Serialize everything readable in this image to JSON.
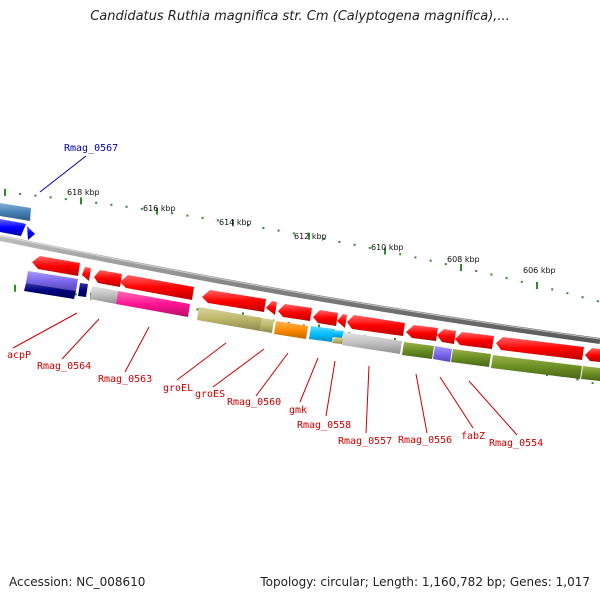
{
  "title": "Candidatus Ruthia magnifica str. Cm (Calyptogena magnifica),...",
  "footer": {
    "accession": "Accession: NC_008610",
    "summary": "Topology: circular; Length: 1,160,782 bp; Genes: 1,017"
  },
  "ruler_labels": [
    "618 kbp",
    "616 kbp",
    "614 kbp",
    "612 kbp",
    "610 kbp",
    "608 kbp",
    "606 kbp"
  ],
  "gene_labels": [
    {
      "text": "Rmag_0567",
      "color": "#0000aa"
    },
    {
      "text": "acpP",
      "color": "#cc0000"
    },
    {
      "text": "Rmag_0564",
      "color": "#cc0000"
    },
    {
      "text": "Rmag_0563",
      "color": "#cc0000"
    },
    {
      "text": "groEL",
      "color": "#cc0000"
    },
    {
      "text": "groES",
      "color": "#cc0000"
    },
    {
      "text": "Rmag_0560",
      "color": "#cc0000"
    },
    {
      "text": "gmk",
      "color": "#cc0000"
    },
    {
      "text": "Rmag_0558",
      "color": "#cc0000"
    },
    {
      "text": "Rmag_0557",
      "color": "#cc0000"
    },
    {
      "text": "Rmag_0556",
      "color": "#cc0000"
    },
    {
      "text": "fabZ",
      "color": "#cc0000"
    },
    {
      "text": "Rmag_0554",
      "color": "#cc0000"
    }
  ],
  "colors": {
    "cds": "#ff0000",
    "forward_gene": "#0000ff",
    "backbone": "#808080",
    "tick": "#2e8b2e",
    "olive": "#6b8e23",
    "khaki": "#bdb76b",
    "pink": "#ff1493",
    "orange": "#ff8c00",
    "cyan": "#00bfff",
    "gray": "#c0c0c0",
    "purple": "#7b68ee",
    "navy": "#000080",
    "steelblue": "#4682b4"
  }
}
